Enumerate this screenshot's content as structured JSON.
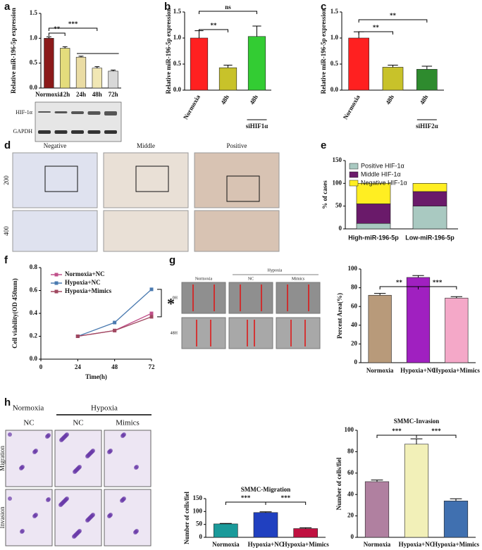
{
  "panels": [
    "a",
    "b",
    "c",
    "d",
    "e",
    "f",
    "g",
    "h"
  ],
  "blot": {
    "labels": [
      "HIF-1α",
      "GAPDH"
    ]
  },
  "ihc": {
    "columns": [
      "Negative",
      "Middle",
      "Positive"
    ],
    "rows": [
      "200",
      "400"
    ]
  },
  "wound": {
    "header": "Hypoxia",
    "columns": [
      "Normoxia",
      "NC",
      "Mimics"
    ],
    "rows": [
      "0H",
      "48H"
    ]
  },
  "transwell": {
    "header_left": "Normoxia",
    "header": "Hypoxia",
    "columns": [
      "NC",
      "NC",
      "Mimics"
    ],
    "rows": [
      "Migration",
      "Invasion"
    ]
  },
  "chart_data": [
    {
      "type": "bar",
      "ylabel": "Relative miR-196-5p expression",
      "categories": [
        "Normoxia",
        "12h",
        "24h",
        "48h",
        "72h"
      ],
      "values": [
        1.0,
        0.8,
        0.62,
        0.4,
        0.34
      ],
      "errors": [
        0.03,
        0.03,
        0.02,
        0.03,
        0.02
      ],
      "colors": [
        "#8b1a1a",
        "#e4dc7c",
        "#eadca4",
        "#f1e7b4",
        "#d8d8d8"
      ],
      "ylim": [
        0,
        1.5
      ],
      "yticks": [
        {
          "value": 0,
          "label": "0.0"
        },
        0.5,
        {
          "value": 1,
          "label": "1.0"
        },
        1.5
      ],
      "annotations": [
        "**",
        "***"
      ]
    },
    {
      "type": "bar",
      "ylabel": "Relative miR-196-5p expression",
      "categories": [
        "Normoxia",
        "48h",
        "48h"
      ],
      "group_label": "siHIF1α",
      "values": [
        1.0,
        0.43,
        1.03
      ],
      "errors": [
        0.14,
        0.05,
        0.2
      ],
      "colors": [
        "#ff2020",
        "#c8c22a",
        "#33cc33"
      ],
      "ylim": [
        0,
        1.5
      ],
      "yticks": [
        {
          "value": 0,
          "label": "0.0"
        },
        0.5,
        {
          "value": 1,
          "label": "1.0"
        },
        1.5
      ],
      "annotations": [
        "**",
        "ns"
      ]
    },
    {
      "type": "bar",
      "ylabel": "Relative miR-196-5p expression",
      "categories": [
        "Normoxia",
        "48h",
        "48h"
      ],
      "group_label": "siHIF2α",
      "values": [
        1.0,
        0.44,
        0.4
      ],
      "errors": [
        0.12,
        0.04,
        0.06
      ],
      "colors": [
        "#ff2020",
        "#c8c22a",
        "#2e8b2e"
      ],
      "ylim": [
        0,
        1.5
      ],
      "yticks": [
        {
          "value": 0,
          "label": "0.0"
        },
        0.5,
        {
          "value": 1,
          "label": "1.0"
        },
        1.5
      ],
      "annotations": [
        "**",
        "**"
      ]
    },
    {
      "type": "stacked",
      "ylabel": "% of cases",
      "categories": [
        "High-miR-196-5p",
        "Low-miR-196-5p"
      ],
      "series": [
        {
          "name": "Positive HIF-1α",
          "color": "#a9c9c1",
          "values": [
            12,
            50
          ]
        },
        {
          "name": "Middle HIF-1α",
          "color": "#6a1a6a",
          "values": [
            43,
            32
          ]
        },
        {
          "name": "Negative HIF-1α",
          "color": "#ffee22",
          "values": [
            45,
            18
          ]
        }
      ],
      "ylim": [
        0,
        150
      ],
      "yticks": [
        0,
        50,
        100,
        150
      ]
    },
    {
      "type": "line",
      "xlabel": "Time(h)",
      "ylabel": "Cell viability(OD 450mm)",
      "x": [
        24,
        48,
        72
      ],
      "xlim": [
        0,
        72
      ],
      "xticks": [
        0,
        24,
        48,
        72
      ],
      "series": [
        {
          "name": "Normoxia+NC",
          "color": "#c0508a",
          "values": [
            0.2,
            0.25,
            0.4
          ]
        },
        {
          "name": "Hypoxia+NC",
          "color": "#4a7ab0",
          "values": [
            0.2,
            0.32,
            0.61
          ]
        },
        {
          "name": "Hypoxia+Mimics",
          "color": "#a04860",
          "values": [
            0.2,
            0.25,
            0.37
          ]
        }
      ],
      "ylim": [
        0,
        0.8
      ],
      "yticks": [
        {
          "value": 0,
          "label": "0.0"
        },
        0.2,
        0.4,
        0.6,
        0.8
      ],
      "annotations": [
        "*"
      ]
    },
    {
      "type": "bar",
      "ylabel": "Percent Area(%)",
      "categories": [
        "Normoxia",
        "Hypoxia+NC",
        "Hypoxia+Mimics"
      ],
      "values": [
        72,
        91,
        69
      ],
      "errors": [
        2,
        2,
        1.5
      ],
      "colors": [
        "#b89a7a",
        "#a020c0",
        "#f4a8c8"
      ],
      "ylim": [
        0,
        100
      ],
      "yticks": [
        0,
        20,
        40,
        60,
        80,
        100
      ],
      "annotations": [
        "**",
        "***"
      ]
    },
    {
      "type": "bar",
      "title": "SMMC-Migration",
      "ylabel": "Number of cells/fiel",
      "categories": [
        "Normoxia",
        "Hypoxia+NC",
        "Hypoxia+Mimics"
      ],
      "values": [
        52,
        96,
        34
      ],
      "errors": [
        2,
        3,
        3
      ],
      "colors": [
        "#1a9a9a",
        "#2040c0",
        "#c01040"
      ],
      "ylim": [
        0,
        150
      ],
      "yticks": [
        0,
        50,
        100,
        150
      ],
      "annotations": [
        "***",
        "***"
      ]
    },
    {
      "type": "bar",
      "title": "SMMC-Invasion",
      "ylabel": "Number of cells/fiel",
      "categories": [
        "Normoxia",
        "Hypoxia+NC",
        "Hypoxia+Mimics"
      ],
      "values": [
        52,
        87,
        34
      ],
      "errors": [
        1.5,
        5,
        2
      ],
      "colors": [
        "#b080a0",
        "#f2f0b8",
        "#4070b0"
      ],
      "ylim": [
        0,
        100
      ],
      "yticks": [
        0,
        20,
        40,
        60,
        80,
        100
      ],
      "annotations": [
        "***",
        "***"
      ]
    }
  ]
}
